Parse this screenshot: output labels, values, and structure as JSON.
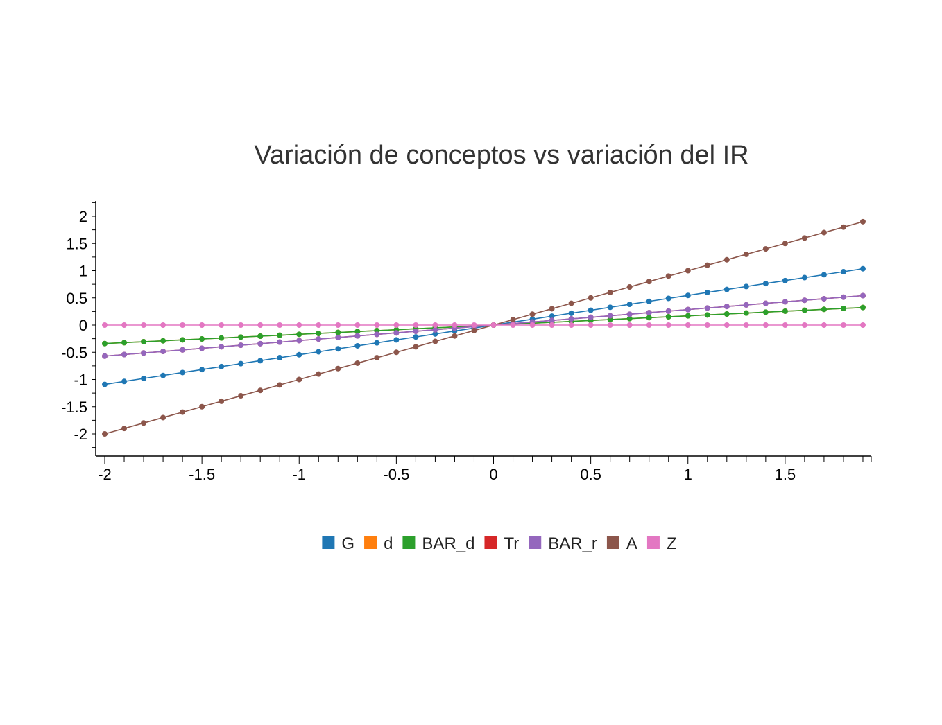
{
  "chart_data": {
    "type": "line",
    "title": "Variación de conceptos vs variación del IR",
    "xlabel": "",
    "ylabel": "",
    "xlim": [
      -2.05,
      1.95
    ],
    "ylim": [
      -2.4,
      2.25
    ],
    "xticks": [
      -2,
      -1.5,
      -1,
      -0.5,
      0,
      0.5,
      1,
      1.5
    ],
    "xtick_labels": [
      "-2",
      "-1.5",
      "-1",
      "-0.5",
      "0",
      "0.5",
      "1",
      "1.5"
    ],
    "yticks": [
      2,
      1.5,
      1,
      0.5,
      0,
      -0.5,
      -1,
      -1.5,
      -2
    ],
    "ytick_labels": [
      "2",
      "1.5",
      "1",
      "0.5",
      "0",
      "-0.5",
      "-1",
      "-1.5",
      "-2"
    ],
    "x_start": -2,
    "x_step": 0.1,
    "x_count": 40,
    "legend_position": "bottom-center",
    "grid": false,
    "series": [
      {
        "name": "G",
        "color": "#1f77b4",
        "slope": 0.545
      },
      {
        "name": "d",
        "color": "#ff7f0e",
        "slope": 0.17
      },
      {
        "name": "BAR_d",
        "color": "#2ca02c",
        "slope": 0.17
      },
      {
        "name": "Tr",
        "color": "#d62728",
        "slope": 0.285
      },
      {
        "name": "BAR_r",
        "color": "#9467bd",
        "slope": 0.285
      },
      {
        "name": "A",
        "color": "#8c564b",
        "slope": 1.0
      },
      {
        "name": "Z",
        "color": "#e377c2",
        "slope": 0.0
      }
    ]
  }
}
